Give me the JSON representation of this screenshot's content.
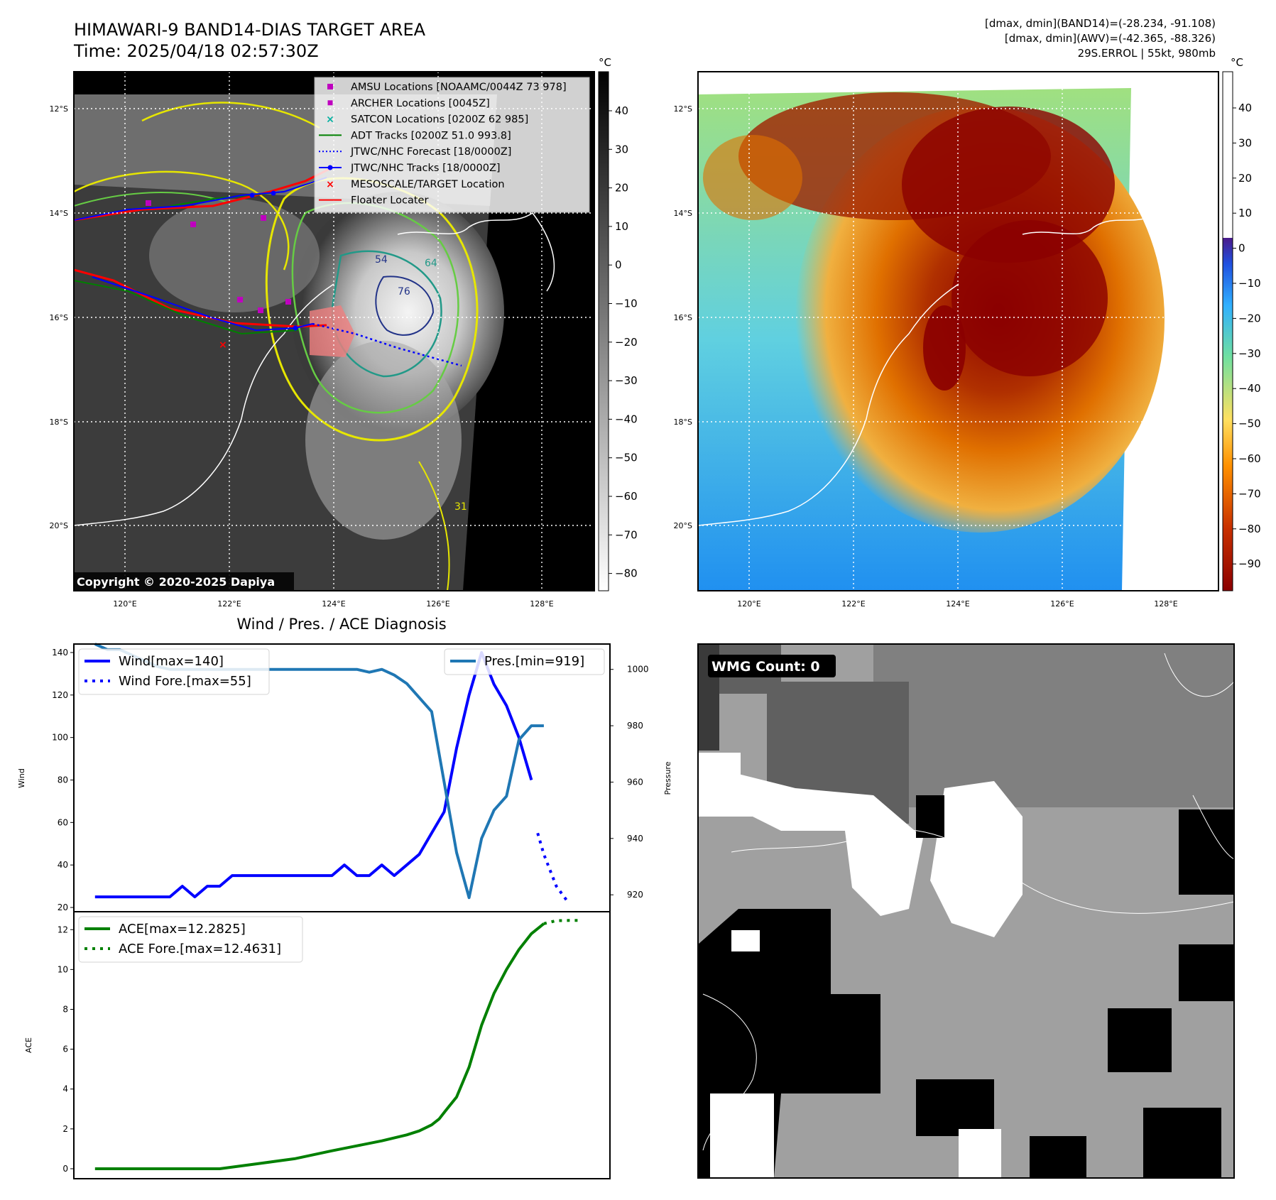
{
  "header": {
    "title_line1": "HIMAWARI-9 BAND14-DIAS TARGET AREA",
    "title_line2": "Time: 2025/04/18 02:57:30Z",
    "info_line1": "[dmax, dmin](BAND14)=(-28.234, -91.108)",
    "info_line2": "[dmax, dmin](AWV)=(-42.365, -88.326)",
    "info_line3": "29S.ERROL | 55kt, 980mb"
  },
  "map_axes": {
    "lat_labels": [
      "12°S",
      "14°S",
      "16°S",
      "18°S",
      "20°S"
    ],
    "lon_labels": [
      "120°E",
      "122°E",
      "124°E",
      "126°E",
      "128°E"
    ]
  },
  "ir_panel": {
    "copyright": "Copyright © 2020-2025 Dapiya",
    "colorbar_unit": "°C",
    "colorbar_ticks": [
      "40",
      "30",
      "20",
      "10",
      "0",
      "−10",
      "−20",
      "−30",
      "−40",
      "−50",
      "−60",
      "−70",
      "−80"
    ],
    "contour_labels": [
      "54",
      "64",
      "76",
      "31"
    ],
    "legend": [
      {
        "label": "AMSU Locations [NOAAMC/0044Z 73 978]",
        "color": "#bf00bf",
        "icon": "square-marker"
      },
      {
        "label": "ARCHER Locations [0045Z]",
        "color": "#bf00bf",
        "icon": "small-square-marker"
      },
      {
        "label": "SATCON Locations [0200Z 62 985]",
        "color": "#00b0a0",
        "icon": "x-marker"
      },
      {
        "label": "ADT Tracks [0200Z 51.0 993.8]",
        "color": "#008000",
        "icon": "solid-line"
      },
      {
        "label": "JTWC/NHC Forecast [18/0000Z]",
        "color": "#0000ff",
        "icon": "dotted-line"
      },
      {
        "label": "JTWC/NHC Tracks [18/0000Z]",
        "color": "#0000ff",
        "icon": "line-dot"
      },
      {
        "label": "MESOSCALE/TARGET Location",
        "color": "#ff0000",
        "icon": "x-marker"
      },
      {
        "label": "Floater Locater",
        "color": "#ff0000",
        "icon": "solid-line"
      }
    ]
  },
  "awv_panel": {
    "colorbar_unit": "°C",
    "colorbar_ticks": [
      "40",
      "30",
      "20",
      "10",
      "0",
      "−10",
      "−20",
      "−30",
      "−40",
      "−50",
      "−60",
      "−70",
      "−80",
      "−90"
    ]
  },
  "wmg_panel": {
    "badge": "WMG Count: 0"
  },
  "chart_data": [
    {
      "type": "line",
      "title": "Wind / Pres. / ACE Diagnosis",
      "ylabel": "Wind",
      "y2label": "Pressure",
      "ylim": [
        18,
        144
      ],
      "y2lim": [
        914,
        1009
      ],
      "yticks": [
        "20",
        "40",
        "60",
        "80",
        "100",
        "120",
        "140"
      ],
      "y2ticks": [
        "920",
        "940",
        "960",
        "980",
        "1000"
      ],
      "series": [
        {
          "name": "Wind[max=140]",
          "color": "#0000ff",
          "style": "solid",
          "x": [
            0,
            1,
            2,
            3,
            4,
            5,
            6,
            7,
            8,
            9,
            10,
            11,
            12,
            13,
            14,
            15,
            16,
            17,
            18,
            19,
            20,
            21,
            22,
            23,
            24,
            25,
            26,
            27,
            28,
            29,
            30,
            31,
            32,
            33,
            34,
            35
          ],
          "values": [
            25,
            25,
            25,
            25,
            25,
            25,
            25,
            30,
            25,
            30,
            30,
            35,
            35,
            35,
            35,
            35,
            35,
            35,
            35,
            35,
            40,
            35,
            35,
            40,
            35,
            40,
            45,
            55,
            65,
            95,
            120,
            140,
            125,
            115,
            100,
            80
          ]
        },
        {
          "name": "Wind Fore.[max=55]",
          "color": "#0000ff",
          "style": "dotted",
          "x": [
            35.5,
            36,
            37,
            38
          ],
          "values": [
            55,
            45,
            30,
            22
          ]
        },
        {
          "name": "Pres.[min=919]",
          "color": "#1f77b4",
          "style": "solid",
          "x": [
            0,
            1,
            2,
            3,
            4,
            5,
            6,
            7,
            8,
            9,
            10,
            11,
            12,
            13,
            14,
            15,
            16,
            17,
            18,
            19,
            20,
            21,
            22,
            23,
            24,
            25,
            26,
            27,
            28,
            29,
            30,
            31,
            32,
            33,
            34,
            35,
            36
          ],
          "values": [
            1009,
            1007,
            1007,
            1005,
            1003,
            1001,
            1000,
            1000,
            1000,
            1000,
            1000,
            1000,
            1000,
            1000,
            1000,
            1000,
            1000,
            1000,
            1000,
            1000,
            1000,
            1000,
            999,
            1000,
            998,
            995,
            990,
            985,
            960,
            935,
            919,
            940,
            950,
            955,
            975,
            980,
            980
          ]
        }
      ]
    },
    {
      "type": "line",
      "ylabel": "ACE",
      "ylim": [
        -0.5,
        12.9
      ],
      "yticks": [
        "0",
        "2",
        "4",
        "6",
        "8",
        "10",
        "12"
      ],
      "series": [
        {
          "name": "ACE[max=12.2825]",
          "color": "#008000",
          "style": "solid",
          "x": [
            0,
            3,
            6,
            10,
            13,
            16,
            19,
            21,
            23,
            25,
            26,
            27,
            27.6,
            28.1,
            29,
            30,
            31,
            32,
            33,
            34,
            35,
            36
          ],
          "values": [
            0,
            0,
            0,
            0,
            0.25,
            0.5,
            0.9,
            1.15,
            1.4,
            1.7,
            1.9,
            2.2,
            2.5,
            2.9,
            3.6,
            5.1,
            7.2,
            8.8,
            10.0,
            11.0,
            11.8,
            12.3
          ]
        },
        {
          "name": "ACE Fore.[max=12.4631]",
          "color": "#008000",
          "style": "dotted",
          "x": [
            36,
            37,
            38,
            39
          ],
          "values": [
            12.3,
            12.45,
            12.46,
            12.46
          ]
        }
      ]
    }
  ]
}
